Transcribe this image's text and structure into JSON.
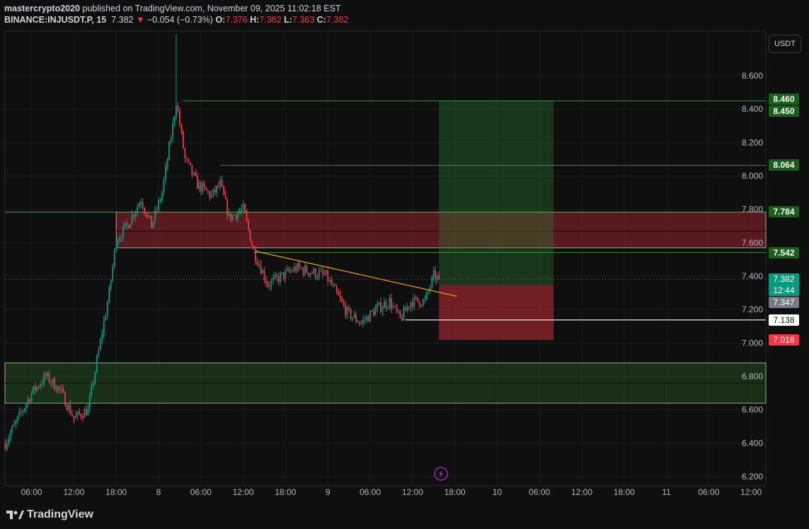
{
  "header": {
    "author": "mastercrypto2020",
    "published_text": "published on TradingView.com, November 09, 2025 11:02:18 EST",
    "symbol": "BINANCE:INJUSDT.P, 15",
    "last": "7.382",
    "change": "−0.054 (−0.73%)",
    "o_label": "O:",
    "o": "7.376",
    "h_label": "H:",
    "h": "7.382",
    "l_label": "L:",
    "l": "7.363",
    "c_label": "C:",
    "c": "7.382"
  },
  "currency_button": "USDT",
  "logo_text": "TradingView",
  "colors": {
    "up": "#089981",
    "down": "#f23645",
    "trendline": "#f7a21b",
    "target": "#1b5e20",
    "stop": "#7f1d24"
  },
  "chart_data": {
    "type": "candlestick",
    "interval": "15",
    "ylim": [
      6.2,
      8.6
    ],
    "grid": true,
    "y_ticks": [
      "6.200",
      "6.400",
      "6.600",
      "6.800",
      "7.000",
      "7.200",
      "7.400",
      "7.600",
      "7.800",
      "8.000",
      "8.200",
      "8.400",
      "8.600"
    ],
    "x_ticks": [
      {
        "label": "06:00",
        "t": "7 06:00"
      },
      {
        "label": "12:00",
        "t": "7 12:00"
      },
      {
        "label": "18:00",
        "t": "7 18:00"
      },
      {
        "label": "8",
        "t": "8 00:00"
      },
      {
        "label": "06:00",
        "t": "8 06:00"
      },
      {
        "label": "12:00",
        "t": "8 12:00"
      },
      {
        "label": "18:00",
        "t": "8 18:00"
      },
      {
        "label": "9",
        "t": "9 00:00"
      },
      {
        "label": "06:00",
        "t": "9 06:00"
      },
      {
        "label": "12:00",
        "t": "9 12:00"
      },
      {
        "label": "18:00",
        "t": "9 18:00"
      },
      {
        "label": "10",
        "t": "10 00:00"
      },
      {
        "label": "06:00",
        "t": "10 06:00"
      },
      {
        "label": "12:00",
        "t": "10 12:00"
      },
      {
        "label": "18:00",
        "t": "10 18:00"
      },
      {
        "label": "11",
        "t": "11 00:00"
      },
      {
        "label": "06:00",
        "t": "11 06:00"
      },
      {
        "label": "12:00",
        "t": "11 12:00"
      }
    ],
    "approx_close_path": [
      [
        "7 02:15",
        6.4
      ],
      [
        "7 06:00",
        6.7
      ],
      [
        "7 08:00",
        6.8
      ],
      [
        "7 10:00",
        6.72
      ],
      [
        "7 12:00",
        6.55
      ],
      [
        "7 14:00",
        6.6
      ],
      [
        "7 15:30",
        6.95
      ],
      [
        "7 17:00",
        7.3
      ],
      [
        "7 18:00",
        7.62
      ],
      [
        "7 19:30",
        7.7
      ],
      [
        "7 21:30",
        7.86
      ],
      [
        "7 23:00",
        7.7
      ],
      [
        "8 00:30",
        7.9
      ],
      [
        "8 02:00",
        8.3
      ],
      [
        "8 02:30",
        8.45
      ],
      [
        "8 03:45",
        8.1
      ],
      [
        "8 05:30",
        7.95
      ],
      [
        "8 07:30",
        7.88
      ],
      [
        "8 08:45",
        7.95
      ],
      [
        "8 10:00",
        7.75
      ],
      [
        "8 12:00",
        7.8
      ],
      [
        "8 13:30",
        7.55
      ],
      [
        "8 15:30",
        7.35
      ],
      [
        "8 17:30",
        7.4
      ],
      [
        "8 19:30",
        7.45
      ],
      [
        "8 23:45",
        7.4
      ],
      [
        "9 02:45",
        7.18
      ],
      [
        "9 04:45",
        7.12
      ],
      [
        "9 06:45",
        7.2
      ],
      [
        "9 08:45",
        7.25
      ],
      [
        "9 10:15",
        7.14
      ],
      [
        "9 11:45",
        7.25
      ],
      [
        "9 13:45",
        7.25
      ],
      [
        "9 15:00",
        7.4
      ],
      [
        "9 15:45",
        7.382
      ]
    ],
    "session_high": {
      "t": "8 02:30",
      "price": 8.85
    },
    "zones": [
      {
        "kind": "resistance",
        "top": 7.784,
        "bottom": 7.57,
        "mid": 7.67,
        "from": "7 18:00"
      },
      {
        "kind": "support",
        "top": 6.88,
        "bottom": 6.64,
        "mid": 6.76,
        "from": "7 02:00"
      }
    ],
    "long_position": {
      "from": "9 15:45",
      "to": "10 08:00",
      "entry": 7.347,
      "target": 8.45,
      "stop": 7.018
    },
    "trendline": {
      "from": [
        "8 13:45",
        7.55
      ],
      "to": [
        "9 18:15",
        7.28
      ]
    },
    "horizontal_lines": [
      {
        "price": 8.45,
        "from": "8 03:30"
      },
      {
        "price": 8.064,
        "from": "8 08:45"
      },
      {
        "price": 7.542,
        "from": "8 13:30"
      },
      {
        "price": 7.138,
        "from": "9 11:00",
        "color": "#ffffff"
      }
    ],
    "price_labels": [
      {
        "text": "8.460",
        "price": 8.46,
        "style": "green"
      },
      {
        "text": "8.450",
        "price": 8.45,
        "style": "green"
      },
      {
        "text": "8.064",
        "price": 8.064,
        "style": "green"
      },
      {
        "text": "7.784",
        "price": 7.784,
        "style": "green"
      },
      {
        "text": "7.542",
        "price": 7.542,
        "style": "green"
      },
      {
        "text": "7.382",
        "sub": "12:44",
        "price": 7.382,
        "style": "last"
      },
      {
        "text": "7.347",
        "price": 7.347,
        "style": "gray"
      },
      {
        "text": "7.138",
        "price": 7.138,
        "style": "white"
      },
      {
        "text": "7.018",
        "price": 7.018,
        "style": "red"
      }
    ]
  }
}
